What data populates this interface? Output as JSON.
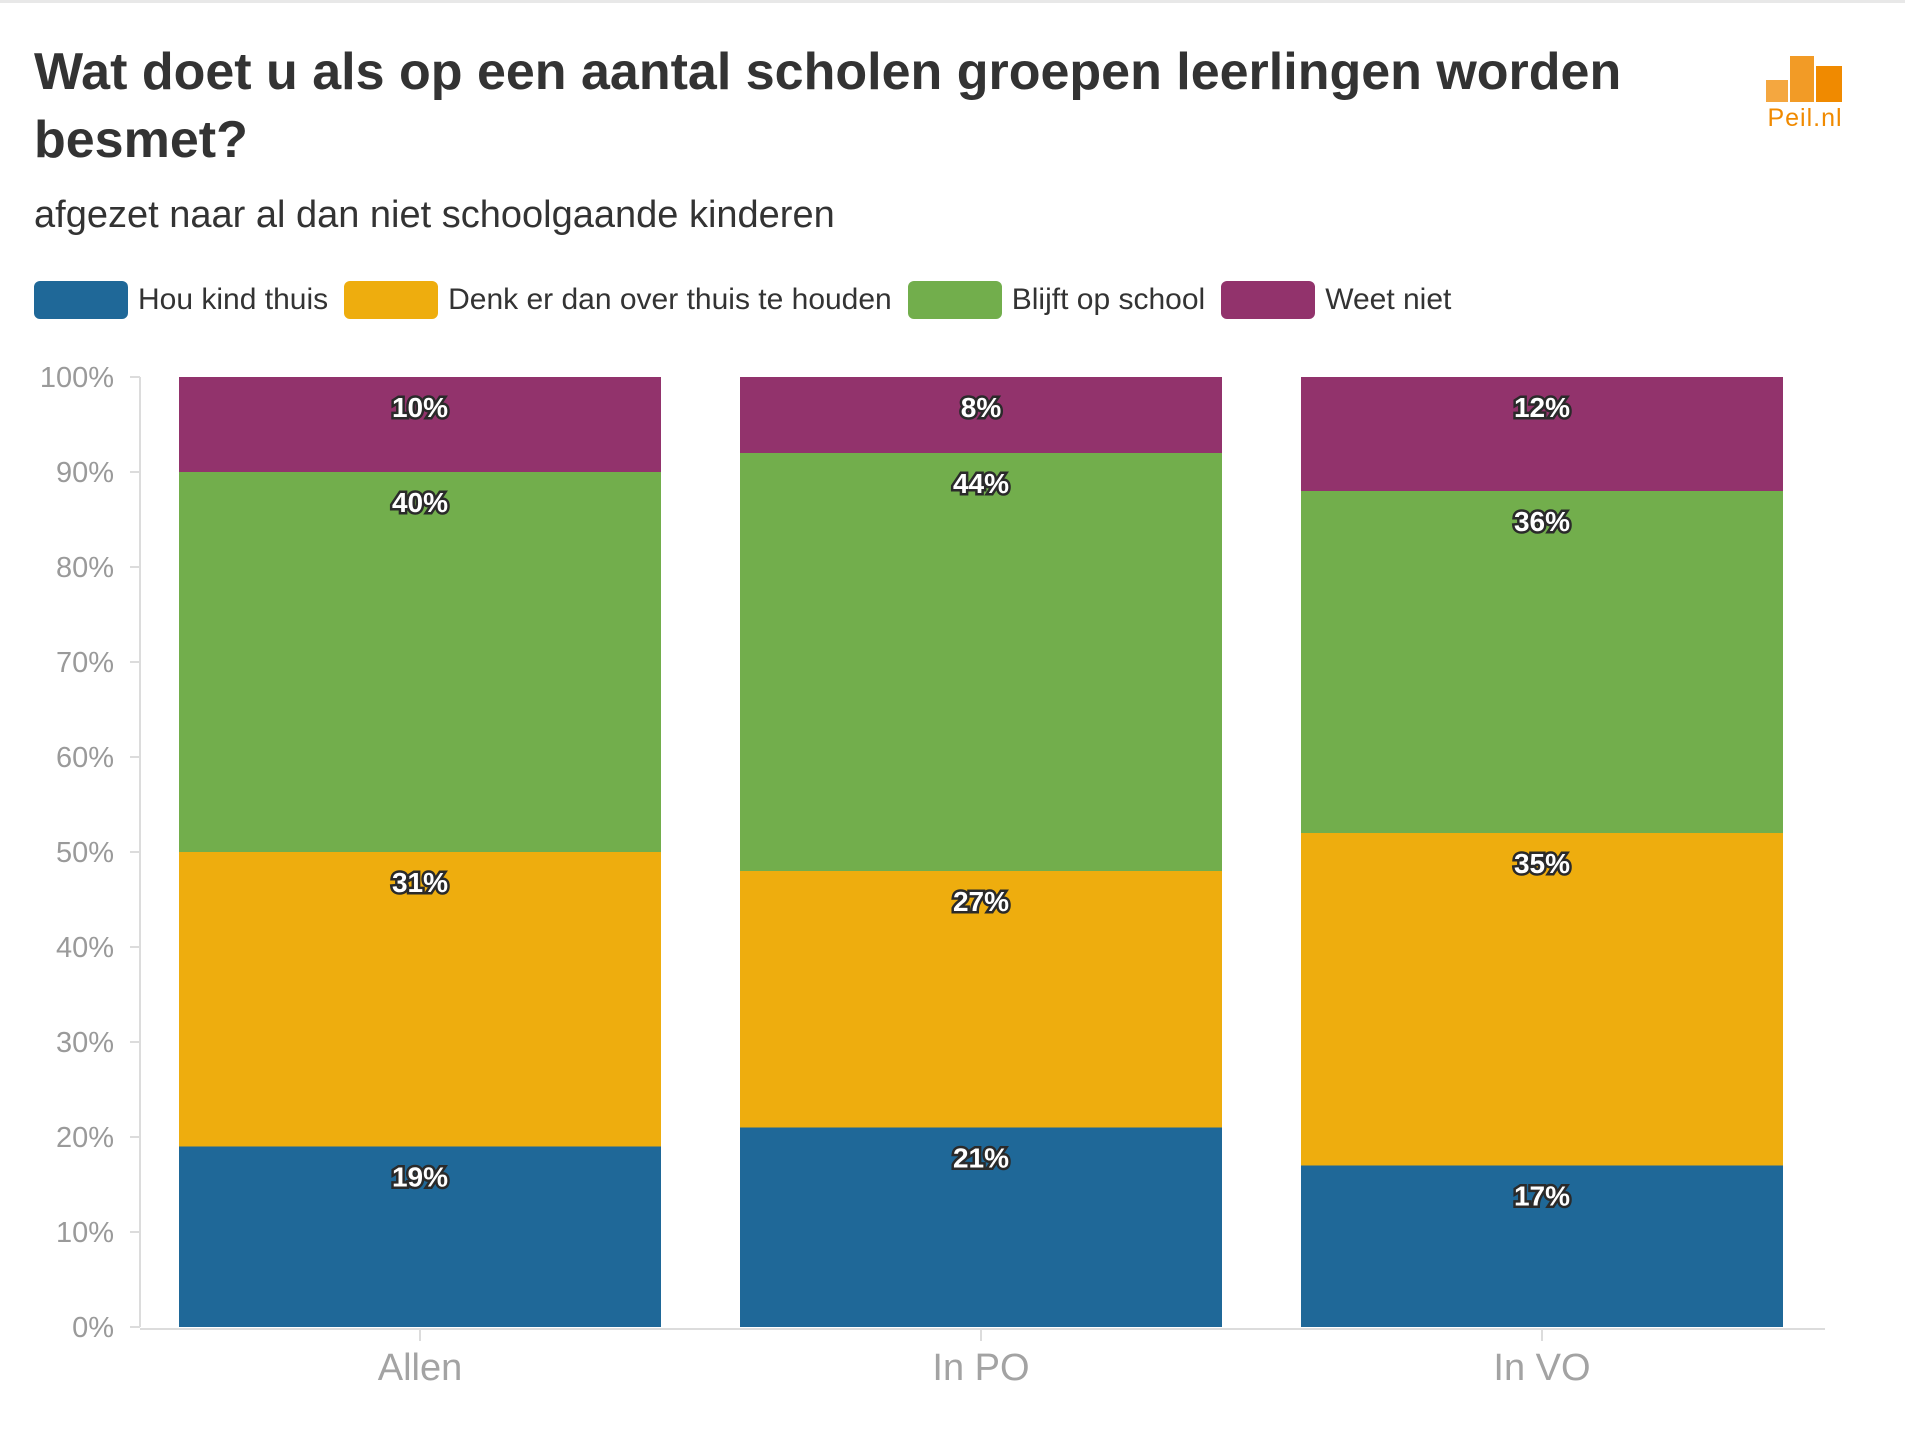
{
  "chart_data": {
    "type": "bar",
    "stacked": true,
    "title": "Wat doet u als op een aantal scholen groepen leerlingen worden besmet?",
    "subtitle": "afgezet naar al dan niet schoolgaande kinderen",
    "categories": [
      "Allen",
      "In PO",
      "In VO"
    ],
    "series": [
      {
        "name": "Hou kind thuis",
        "color": "#1f6898",
        "values": [
          19,
          21,
          17
        ]
      },
      {
        "name": "Denk er dan over thuis te houden",
        "color": "#eead0e",
        "values": [
          31,
          27,
          35
        ]
      },
      {
        "name": "Blijft op school",
        "color": "#72ae4c",
        "values": [
          40,
          44,
          36
        ]
      },
      {
        "name": "Weet niet",
        "color": "#92336c",
        "values": [
          10,
          8,
          12
        ]
      }
    ],
    "value_suffix": "%",
    "yticks": [
      "0%",
      "10%",
      "20%",
      "30%",
      "40%",
      "50%",
      "60%",
      "70%",
      "80%",
      "90%",
      "100%"
    ],
    "ylim": [
      0,
      100
    ],
    "xlabel": "",
    "ylabel": "",
    "legend_position": "top-left",
    "grid": false
  },
  "logo": {
    "text": "Peil.nl",
    "color": "#f08a00"
  }
}
